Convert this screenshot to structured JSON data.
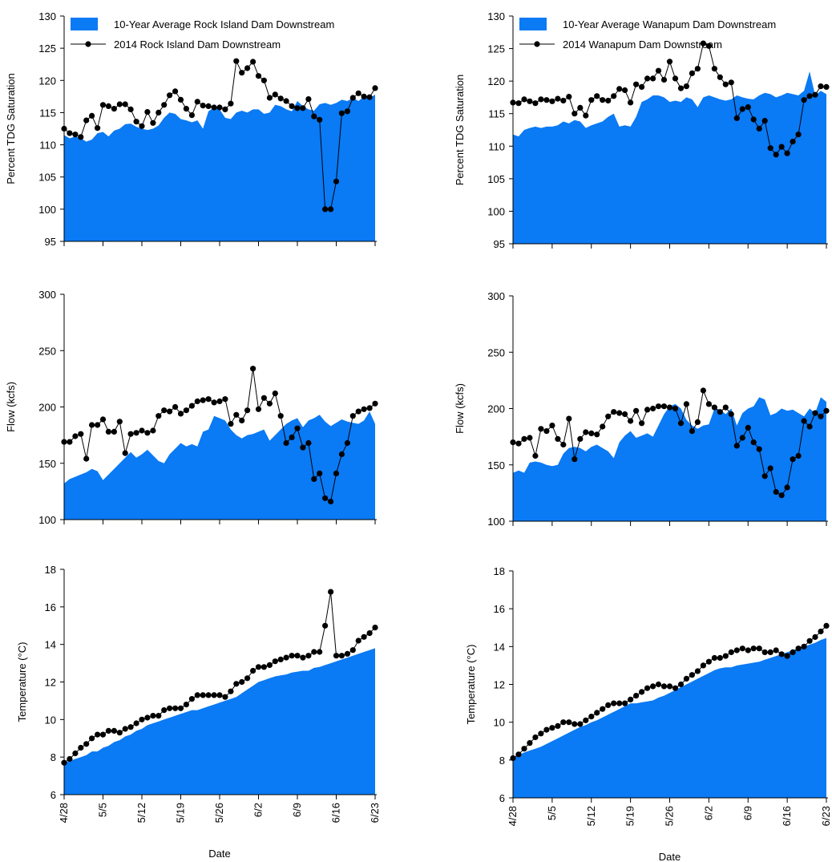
{
  "colors": {
    "area_fill": "#0A7AF5",
    "line": "#000000",
    "marker": "#000000",
    "background": "#FFFFFF"
  },
  "shared_x_axis": {
    "label": "Date",
    "start": "4/28",
    "tick_labels": [
      "4/28",
      "5/5",
      "5/12",
      "5/19",
      "5/26",
      "6/2",
      "6/9",
      "6/16",
      "6/23"
    ]
  },
  "chart_data": [
    {
      "id": "ri_tdg",
      "type": "area+line",
      "ylabel": "Percent TDG Saturation",
      "ylim": [
        95,
        130
      ],
      "yticks": [
        95,
        100,
        105,
        110,
        115,
        120,
        125,
        130
      ],
      "legend_position": "top-left",
      "x_labels_shown": false,
      "x_title_shown": false,
      "series": [
        {
          "name": "10-Year Average Rock Island Dam Downstream",
          "kind": "area",
          "values": [
            111.5,
            111,
            111.3,
            111,
            110.5,
            110.8,
            111.8,
            112,
            111.3,
            112.2,
            112.5,
            113.2,
            113.3,
            112.8,
            112.5,
            112.3,
            112.5,
            113,
            114.2,
            115,
            114.8,
            114,
            113.8,
            113.5,
            113.8,
            112.5,
            115.2,
            115.8,
            115.5,
            114.2,
            114,
            115,
            115.3,
            115,
            115.5,
            115.5,
            114.8,
            115,
            116.2,
            116,
            115.5,
            115.2,
            116.8,
            116,
            115.5,
            115.3,
            116.3,
            116.5,
            116.2,
            116.5,
            117,
            116.8,
            117.3,
            116.8,
            117.5,
            117.2,
            117.8
          ]
        },
        {
          "name": "2014 Rock Island Dam Downstream",
          "kind": "line",
          "values": [
            112.5,
            111.8,
            111.6,
            111.2,
            113.8,
            114.5,
            112.6,
            116.2,
            116,
            115.6,
            116.3,
            116.3,
            115.5,
            113.6,
            112.9,
            115.1,
            113.4,
            115,
            116.2,
            117.7,
            118.3,
            117,
            115.6,
            114.6,
            116.7,
            116.1,
            116,
            115.8,
            115.8,
            115.5,
            116.4,
            123,
            121.2,
            121.9,
            122.9,
            120.7,
            120,
            117.3,
            117.8,
            117.2,
            116.8,
            116,
            115.7,
            115.7,
            117.1,
            114.4,
            113.9,
            100,
            100,
            104.3,
            114.9,
            115.2,
            117.3,
            118,
            117.5,
            117.4,
            118.8
          ]
        }
      ]
    },
    {
      "id": "wa_tdg",
      "type": "area+line",
      "ylabel": "Percent TDG Saturation",
      "ylim": [
        95,
        130
      ],
      "yticks": [
        95,
        100,
        105,
        110,
        115,
        120,
        125,
        130
      ],
      "legend_position": "top-left",
      "x_labels_shown": false,
      "x_title_shown": false,
      "series": [
        {
          "name": "10-Year Average Wanapum Dam Downstream",
          "kind": "area",
          "values": [
            111.8,
            111.5,
            112.5,
            112.8,
            113,
            112.8,
            113,
            113,
            113.2,
            113.8,
            113.5,
            114,
            113.8,
            112.8,
            113.2,
            113.5,
            113.8,
            114.5,
            115,
            113,
            113.2,
            113,
            114.5,
            116.8,
            117.2,
            117.8,
            117.8,
            117.5,
            116.8,
            117,
            116.8,
            117.5,
            117.2,
            116,
            117.5,
            117.8,
            117.5,
            117.2,
            117,
            117.2,
            117.8,
            117.5,
            117.3,
            117.2,
            117.8,
            118.2,
            118,
            117.5,
            117.8,
            118.2,
            118,
            117.8,
            118.5,
            121.5,
            117.8,
            118.5,
            118
          ]
        },
        {
          "name": "2014 Wanapum Dam Downstream",
          "kind": "line",
          "values": [
            116.7,
            116.6,
            117.2,
            116.9,
            116.6,
            117.2,
            117.1,
            116.9,
            117.3,
            117,
            117.6,
            115,
            115.9,
            114.7,
            117.1,
            117.7,
            117.1,
            117,
            117.7,
            118.8,
            118.6,
            116.7,
            119.5,
            119.1,
            120.4,
            120.4,
            121.6,
            120.2,
            123,
            120.4,
            118.9,
            119.2,
            121.2,
            121.9,
            125.8,
            125.4,
            121.9,
            120.6,
            119.5,
            119.8,
            114.3,
            115.7,
            116,
            114.1,
            112.7,
            113.9,
            109.7,
            108.7,
            109.9,
            108.9,
            110.7,
            111.8,
            117.1,
            117.7,
            117.9,
            119.2,
            119.1
          ]
        }
      ]
    },
    {
      "id": "ri_flow",
      "type": "area+line",
      "ylabel": "Flow (kcfs)",
      "ylim": [
        100,
        300
      ],
      "yticks": [
        100,
        150,
        200,
        250,
        300
      ],
      "x_labels_shown": false,
      "x_title_shown": false,
      "series": [
        {
          "name": "10-Year Average Rock Island Dam Downstream",
          "kind": "area",
          "values": [
            132,
            136,
            138,
            140,
            142,
            145,
            143,
            135,
            140,
            145,
            150,
            155,
            160,
            155,
            158,
            162,
            157,
            152,
            150,
            158,
            163,
            168,
            165,
            167,
            165,
            178,
            180,
            192,
            190,
            188,
            180,
            175,
            172,
            175,
            176,
            178,
            180,
            170,
            175,
            180,
            185,
            188,
            190,
            182,
            188,
            190,
            193,
            187,
            183,
            186,
            189,
            187,
            186,
            185,
            188,
            196,
            185
          ]
        },
        {
          "name": "2014 Rock Island Dam Downstream",
          "kind": "line",
          "values": [
            169,
            169,
            174,
            176,
            154,
            184,
            184,
            189,
            178,
            178,
            187,
            159,
            176,
            177,
            179,
            177,
            179,
            192,
            197,
            196,
            200,
            194,
            197,
            201,
            205,
            206,
            207,
            204,
            205,
            207,
            185,
            193,
            188,
            197,
            234,
            198,
            208,
            203,
            212,
            192,
            168,
            173,
            181,
            164,
            168,
            136,
            141,
            119,
            116,
            141,
            158,
            168,
            192,
            196,
            198,
            199,
            203
          ]
        }
      ]
    },
    {
      "id": "wa_flow",
      "type": "area+line",
      "ylabel": "Flow (kcfs)",
      "ylim": [
        100,
        300
      ],
      "yticks": [
        100,
        150,
        200,
        250,
        300
      ],
      "x_labels_shown": false,
      "x_title_shown": false,
      "series": [
        {
          "name": "10-Year Average Wanapum Dam Downstream",
          "kind": "area",
          "values": [
            143,
            145,
            143,
            152,
            153,
            152,
            150,
            149,
            150,
            160,
            165,
            166,
            165,
            162,
            166,
            168,
            165,
            162,
            156,
            170,
            176,
            180,
            174,
            176,
            178,
            175,
            185,
            195,
            202,
            204,
            200,
            190,
            185,
            182,
            185,
            186,
            200,
            199,
            195,
            200,
            185,
            196,
            200,
            202,
            210,
            208,
            194,
            196,
            200,
            198,
            199,
            196,
            193,
            200,
            196,
            210,
            206
          ]
        },
        {
          "name": "2014 Wanapum Dam Downstream",
          "kind": "line",
          "values": [
            170,
            169,
            173,
            174,
            158,
            182,
            180,
            185,
            173,
            168,
            191,
            155,
            173,
            179,
            178,
            177,
            184,
            193,
            197,
            196,
            195,
            189,
            198,
            187,
            199,
            200,
            202,
            202,
            201,
            200,
            187,
            204,
            180,
            188,
            216,
            204,
            201,
            197,
            201,
            195,
            167,
            174,
            183,
            170,
            164,
            140,
            147,
            126,
            123,
            130,
            155,
            158,
            189,
            184,
            196,
            193,
            198
          ]
        }
      ]
    },
    {
      "id": "ri_temp",
      "type": "area+line",
      "ylabel": "Temperature (°C)",
      "ylim": [
        6,
        18
      ],
      "yticks": [
        6,
        8,
        10,
        12,
        14,
        16,
        18
      ],
      "x_labels_shown": true,
      "x_title_shown": true,
      "series": [
        {
          "name": "10-Year Average Rock Island Dam Downstream",
          "kind": "area",
          "values": [
            7.7,
            7.8,
            7.9,
            8,
            8.1,
            8.3,
            8.3,
            8.5,
            8.6,
            8.8,
            8.9,
            9.1,
            9.2,
            9.4,
            9.5,
            9.7,
            9.8,
            9.9,
            10,
            10.1,
            10.2,
            10.3,
            10.4,
            10.5,
            10.5,
            10.6,
            10.7,
            10.8,
            10.9,
            11,
            11.1,
            11.2,
            11.4,
            11.6,
            11.8,
            12,
            12.1,
            12.2,
            12.3,
            12.35,
            12.4,
            12.5,
            12.55,
            12.6,
            12.6,
            12.75,
            12.8,
            12.9,
            13,
            13.1,
            13.2,
            13.3,
            13.4,
            13.5,
            13.6,
            13.7,
            13.8
          ]
        },
        {
          "name": "2014 Rock Island Dam Downstream",
          "kind": "line",
          "values": [
            7.7,
            7.9,
            8.2,
            8.5,
            8.7,
            9,
            9.2,
            9.2,
            9.4,
            9.4,
            9.3,
            9.5,
            9.6,
            9.8,
            10,
            10.1,
            10.2,
            10.2,
            10.5,
            10.6,
            10.6,
            10.6,
            10.8,
            11.1,
            11.3,
            11.3,
            11.3,
            11.3,
            11.3,
            11.2,
            11.5,
            11.9,
            12,
            12.2,
            12.6,
            12.8,
            12.8,
            12.9,
            13.1,
            13.2,
            13.3,
            13.4,
            13.4,
            13.3,
            13.4,
            13.6,
            13.6,
            15,
            16.8,
            13.4,
            13.4,
            13.5,
            13.7,
            14.2,
            14.4,
            14.6,
            14.9
          ]
        }
      ]
    },
    {
      "id": "wa_temp",
      "type": "area+line",
      "ylabel": "Temperature (°C)",
      "ylim": [
        6,
        18
      ],
      "yticks": [
        6,
        8,
        10,
        12,
        14,
        16,
        18
      ],
      "x_labels_shown": true,
      "x_title_shown": true,
      "series": [
        {
          "name": "10-Year Average Wanapum Dam Downstream",
          "kind": "area",
          "values": [
            8.1,
            8.25,
            8.4,
            8.5,
            8.6,
            8.7,
            8.85,
            9,
            9.15,
            9.3,
            9.45,
            9.6,
            9.75,
            9.85,
            10,
            10.1,
            10.25,
            10.4,
            10.55,
            10.7,
            10.85,
            11,
            11,
            11.05,
            11.1,
            11.15,
            11.3,
            11.4,
            11.55,
            11.7,
            11.85,
            12,
            12.15,
            12.3,
            12.45,
            12.6,
            12.75,
            12.85,
            12.9,
            12.9,
            13,
            13.05,
            13.1,
            13.15,
            13.2,
            13.3,
            13.4,
            13.5,
            13.6,
            13.7,
            13.8,
            13.9,
            14,
            14.1,
            14.2,
            14.35,
            14.45
          ]
        },
        {
          "name": "2014 Wanapum Dam Downstream",
          "kind": "line",
          "values": [
            8.1,
            8.3,
            8.6,
            8.9,
            9.2,
            9.4,
            9.6,
            9.7,
            9.8,
            10,
            10,
            9.9,
            9.9,
            10.1,
            10.3,
            10.5,
            10.7,
            10.9,
            11,
            11,
            11,
            11.2,
            11.4,
            11.6,
            11.8,
            11.9,
            12,
            11.9,
            11.9,
            11.8,
            12,
            12.3,
            12.5,
            12.7,
            13,
            13.2,
            13.4,
            13.4,
            13.5,
            13.7,
            13.8,
            13.9,
            13.8,
            13.9,
            13.9,
            13.7,
            13.7,
            13.8,
            13.6,
            13.5,
            13.7,
            13.9,
            14,
            14.3,
            14.5,
            14.8,
            15.1
          ]
        }
      ]
    }
  ]
}
